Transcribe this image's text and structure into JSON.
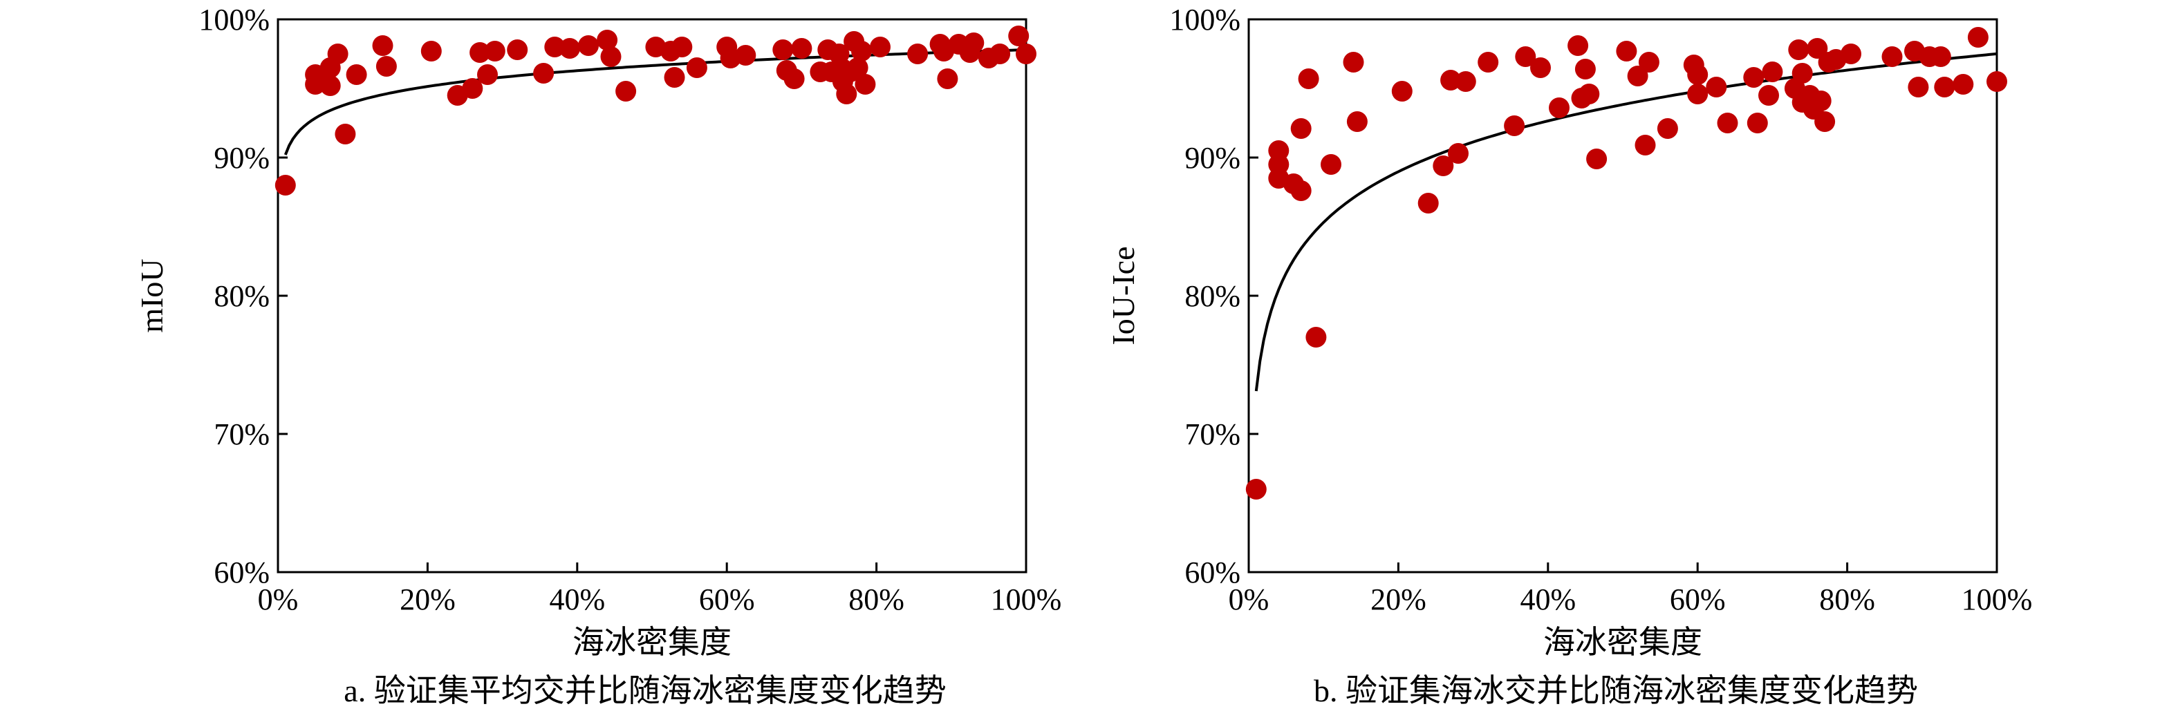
{
  "accent_color": "#c00000",
  "chart_data": [
    {
      "type": "scatter",
      "caption": "a. 验证集平均交并比随海冰密集度变化趋势",
      "xlabel": "海冰密集度",
      "ylabel": "mIoU",
      "xlim": [
        0,
        100
      ],
      "ylim": [
        60,
        100
      ],
      "xticks": [
        "0%",
        "20%",
        "40%",
        "60%",
        "80%",
        "100%"
      ],
      "yticks": [
        "60%",
        "70%",
        "80%",
        "90%",
        "100%"
      ],
      "grid": false,
      "marker_color": "#c00000",
      "series": [
        {
          "points": [
            [
              1,
              88
            ],
            [
              5,
              96
            ],
            [
              5,
              95.3
            ],
            [
              6,
              95.6
            ],
            [
              7,
              95.2
            ],
            [
              7,
              96.5
            ],
            [
              8,
              97.5
            ],
            [
              9,
              91.7
            ],
            [
              10.5,
              96
            ],
            [
              14,
              98.1
            ],
            [
              14.5,
              96.6
            ],
            [
              20.5,
              97.7
            ],
            [
              24,
              94.5
            ],
            [
              26,
              95
            ],
            [
              27,
              97.6
            ],
            [
              28,
              96
            ],
            [
              29,
              97.7
            ],
            [
              32,
              97.8
            ],
            [
              35.5,
              96.1
            ],
            [
              37,
              98
            ],
            [
              39,
              97.9
            ],
            [
              41.5,
              98.1
            ],
            [
              44,
              98.5
            ],
            [
              44.5,
              97.3
            ],
            [
              46.5,
              94.8
            ],
            [
              50.5,
              98
            ],
            [
              52.5,
              97.7
            ],
            [
              53,
              95.8
            ],
            [
              54,
              98
            ],
            [
              56,
              96.5
            ],
            [
              60,
              98
            ],
            [
              60.5,
              97.2
            ],
            [
              62.5,
              97.4
            ],
            [
              67.5,
              97.8
            ],
            [
              68,
              96.3
            ],
            [
              69,
              95.7
            ],
            [
              70,
              97.9
            ],
            [
              72.5,
              96.2
            ],
            [
              73.5,
              97.8
            ],
            [
              74,
              96.2
            ],
            [
              75,
              97.5
            ],
            [
              75.5,
              96.4
            ],
            [
              75.5,
              95.5
            ],
            [
              76,
              94.6
            ],
            [
              76.5,
              96.2
            ],
            [
              77,
              98.4
            ],
            [
              77.5,
              96.5
            ],
            [
              78,
              97.7
            ],
            [
              78.5,
              95.3
            ],
            [
              80.5,
              98
            ],
            [
              85.5,
              97.5
            ],
            [
              88.5,
              98.2
            ],
            [
              89,
              97.7
            ],
            [
              89.5,
              95.7
            ],
            [
              91,
              98.2
            ],
            [
              92.5,
              97.6
            ],
            [
              93,
              98.3
            ],
            [
              95,
              97.2
            ],
            [
              96.5,
              97.5
            ],
            [
              99,
              98.8
            ],
            [
              100,
              97.5
            ]
          ]
        }
      ],
      "trend": {
        "a": 90.2,
        "b": 1.65
      }
    },
    {
      "type": "scatter",
      "caption": "b. 验证集海冰交并比随海冰密集度变化趋势",
      "xlabel": "海冰密集度",
      "ylabel": "IoU-Ice",
      "xlim": [
        0,
        100
      ],
      "ylim": [
        60,
        100
      ],
      "xticks": [
        "0%",
        "20%",
        "40%",
        "60%",
        "80%",
        "100%"
      ],
      "yticks": [
        "60%",
        "70%",
        "80%",
        "90%",
        "100%"
      ],
      "grid": false,
      "marker_color": "#c00000",
      "series": [
        {
          "points": [
            [
              1,
              66
            ],
            [
              4,
              90.5
            ],
            [
              4,
              89.5
            ],
            [
              4,
              88.5
            ],
            [
              6,
              88.1
            ],
            [
              7,
              92.1
            ],
            [
              7,
              87.6
            ],
            [
              8,
              95.7
            ],
            [
              9,
              77
            ],
            [
              11,
              89.5
            ],
            [
              14,
              96.9
            ],
            [
              14.5,
              92.6
            ],
            [
              20.5,
              94.8
            ],
            [
              24,
              86.7
            ],
            [
              26,
              89.4
            ],
            [
              27,
              95.6
            ],
            [
              28,
              90.3
            ],
            [
              29,
              95.5
            ],
            [
              32,
              96.9
            ],
            [
              35.5,
              92.3
            ],
            [
              37,
              97.3
            ],
            [
              39,
              96.5
            ],
            [
              41.5,
              93.6
            ],
            [
              44,
              98.1
            ],
            [
              44.5,
              94.3
            ],
            [
              45,
              96.4
            ],
            [
              45.5,
              94.6
            ],
            [
              46.5,
              89.9
            ],
            [
              50.5,
              97.7
            ],
            [
              52,
              95.9
            ],
            [
              53,
              90.9
            ],
            [
              53.5,
              96.9
            ],
            [
              56,
              92.1
            ],
            [
              59.5,
              96.7
            ],
            [
              60,
              96
            ],
            [
              60,
              94.6
            ],
            [
              62.5,
              95.1
            ],
            [
              64,
              92.5
            ],
            [
              67.5,
              95.8
            ],
            [
              68,
              92.5
            ],
            [
              69.5,
              94.5
            ],
            [
              70,
              96.2
            ],
            [
              73,
              95
            ],
            [
              73.5,
              97.8
            ],
            [
              74,
              94
            ],
            [
              74,
              96.1
            ],
            [
              75,
              94.5
            ],
            [
              75.5,
              93.5
            ],
            [
              76,
              97.9
            ],
            [
              76.5,
              94.1
            ],
            [
              77,
              92.6
            ],
            [
              77.5,
              96.9
            ],
            [
              78.5,
              97.1
            ],
            [
              80.5,
              97.5
            ],
            [
              86,
              97.3
            ],
            [
              89,
              97.7
            ],
            [
              89.5,
              95.1
            ],
            [
              91,
              97.3
            ],
            [
              92.5,
              97.3
            ],
            [
              93,
              95.1
            ],
            [
              95.5,
              95.3
            ],
            [
              97.5,
              98.7
            ],
            [
              100,
              95.5
            ]
          ]
        }
      ],
      "trend": {
        "a": 73.1,
        "b": 5.3
      }
    }
  ]
}
